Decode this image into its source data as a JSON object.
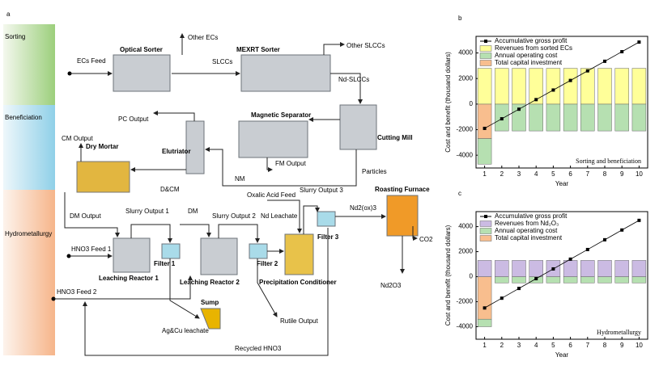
{
  "diagram": {
    "panel_label": "a",
    "stages": [
      "Sorting",
      "Beneficiation",
      "Hydrometallurgy"
    ],
    "labels": [
      "ECs Feed",
      "Optical Sorter",
      "Other ECs",
      "SLCCs",
      "MEXRT Sorter",
      "Other SLCCs",
      "Nd-SLCCs",
      "PC Output",
      "Magnetic Separator",
      "Cutting Mill",
      "CM Output",
      "Dry Mortar",
      "Elutriator",
      "FM Output",
      "Particles",
      "NM",
      "D&CM",
      "Oxalic Acid Feed",
      "Slurry Output 3",
      "Roasting Furnace",
      "DM Output",
      "Slurry Output 1",
      "DM",
      "Slurry Output 2",
      "Nd Leachate",
      "Nd2(ox)3",
      "Filter 3",
      "HNO3 Feed 1",
      "Filter 1",
      "Filter 2",
      "CO2",
      "Leaching Reactor 1",
      "Leaching Reactor 2",
      "Precipitation Conditioner",
      "Nd2O3",
      "HNO3 Feed 2",
      "Sump",
      "Rutile Output",
      "Ag&Cu leachate",
      "Recycled HNO3"
    ]
  },
  "chart_data": [
    {
      "type": "bar",
      "panel_label": "b",
      "annotation": "Sorting and beneficiation",
      "xlabel": "Year",
      "ylabel": "Cost and benefit (thousand dollars)",
      "x": [
        1,
        2,
        3,
        4,
        5,
        6,
        7,
        8,
        9,
        10
      ],
      "xlim": [
        0.5,
        10.5
      ],
      "xticks": [
        1,
        2,
        3,
        4,
        5,
        6,
        7,
        8,
        9,
        10
      ],
      "ylim": [
        -5000,
        5300
      ],
      "yticks": [
        -4000,
        -2000,
        0,
        2000,
        4000
      ],
      "legend": "upper left",
      "series": [
        {
          "name": "Accumulative gross profit",
          "type": "line",
          "color": "#000000",
          "values": [
            -1900,
            -1150,
            -400,
            350,
            1100,
            1850,
            2600,
            3350,
            4100,
            4850
          ]
        },
        {
          "name": "Revenues from sorted ECs",
          "color": "#ffff99",
          "values": [
            2800,
            2800,
            2800,
            2800,
            2800,
            2800,
            2800,
            2800,
            2800,
            2800
          ]
        },
        {
          "name": "Annual operating cost",
          "color": "#b6e0b1",
          "values": [
            -2000,
            -2100,
            -2100,
            -2100,
            -2100,
            -2100,
            -2100,
            -2100,
            -2100,
            -2100
          ]
        },
        {
          "name": "Total capital investment",
          "color": "#f8be8e",
          "values": [
            -2700,
            0,
            0,
            0,
            0,
            0,
            0,
            0,
            0,
            0
          ]
        }
      ]
    },
    {
      "type": "bar",
      "panel_label": "c",
      "annotation": "Hydrometallurgy",
      "xlabel": "Year",
      "ylabel": "Cost and benefit (thousand dollars)",
      "x": [
        1,
        2,
        3,
        4,
        5,
        6,
        7,
        8,
        9,
        10
      ],
      "xlim": [
        0.5,
        10.5
      ],
      "xticks": [
        1,
        2,
        3,
        4,
        5,
        6,
        7,
        8,
        9,
        10
      ],
      "ylim": [
        -5000,
        5200
      ],
      "yticks": [
        -4000,
        -2000,
        0,
        2000,
        4000
      ],
      "legend": "upper left",
      "series": [
        {
          "name": "Accumulative gross profit",
          "type": "line",
          "color": "#000000",
          "values": [
            -2500,
            -1720,
            -940,
            -160,
            620,
            1400,
            2170,
            2950,
            3730,
            4500
          ]
        },
        {
          "name": "Revenues from Nd₂O₃",
          "color": "#cbbbe3",
          "values": [
            1300,
            1300,
            1300,
            1300,
            1300,
            1300,
            1300,
            1300,
            1300,
            1300
          ]
        },
        {
          "name": "Annual operating cost",
          "color": "#b6e0b1",
          "values": [
            -600,
            -500,
            -500,
            -500,
            -500,
            -500,
            -500,
            -500,
            -500,
            -500
          ]
        },
        {
          "name": "Total capital investment",
          "color": "#f8be8e",
          "values": [
            -3400,
            0,
            0,
            0,
            0,
            0,
            0,
            0,
            0,
            0
          ]
        }
      ]
    }
  ]
}
